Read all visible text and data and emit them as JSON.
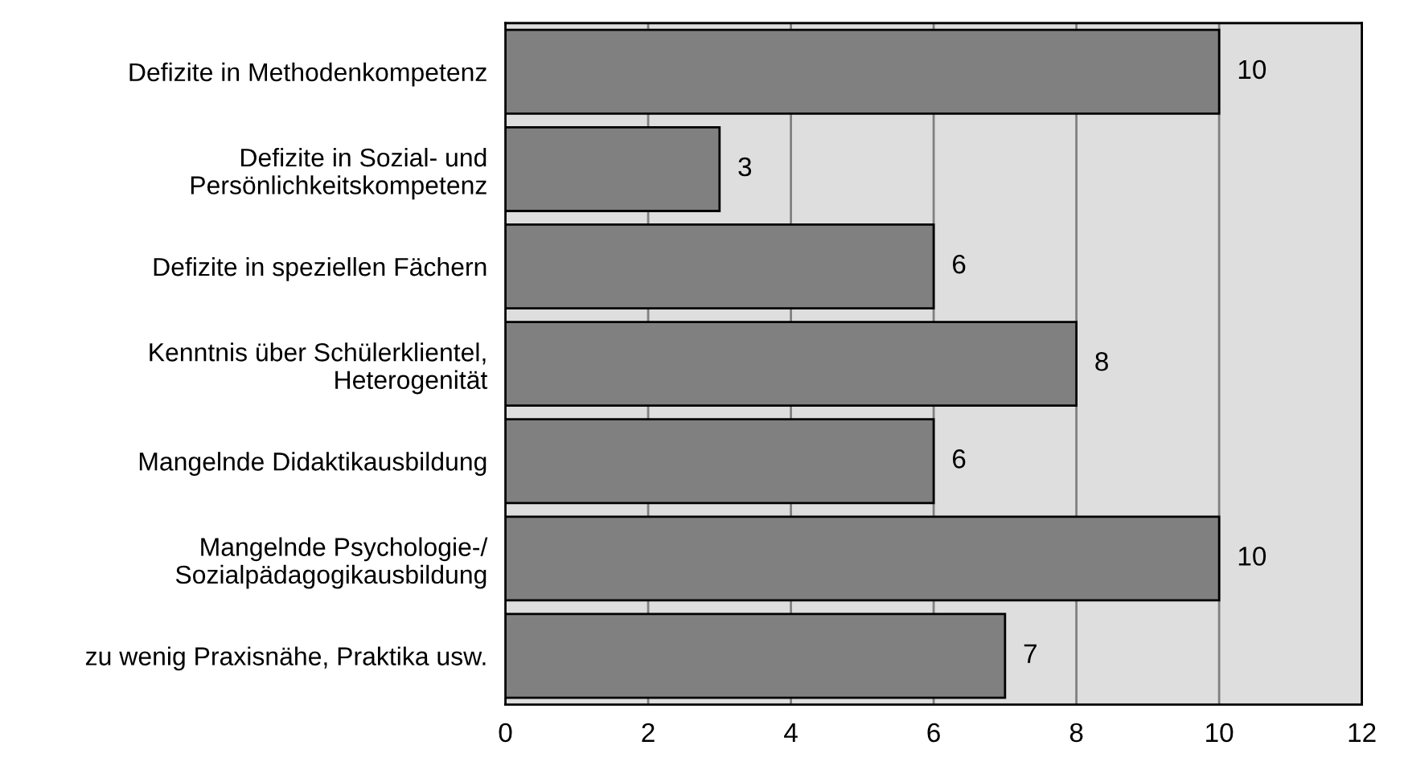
{
  "chart_data": {
    "type": "bar",
    "orientation": "horizontal",
    "categories": [
      "Defizite in Methodenkompetenz",
      "Defizite in Sozial- und\nPersönlichkeitskompetenz",
      "Defizite in speziellen Fächern",
      "Kenntnis über Schülerklientel,\nHeterogenität",
      "Mangelnde Didaktikausbildung",
      "Mangelnde Psychologie-/\nSozialpädagogikausbildung",
      "zu wenig Praxisnähe, Praktika usw."
    ],
    "values": [
      10,
      3,
      6,
      8,
      6,
      10,
      7
    ],
    "color": "#808080",
    "xlim": [
      0,
      12
    ],
    "xticks": [
      0,
      2,
      4,
      6,
      8,
      10,
      12
    ],
    "grid": "x",
    "data_labels": true
  }
}
